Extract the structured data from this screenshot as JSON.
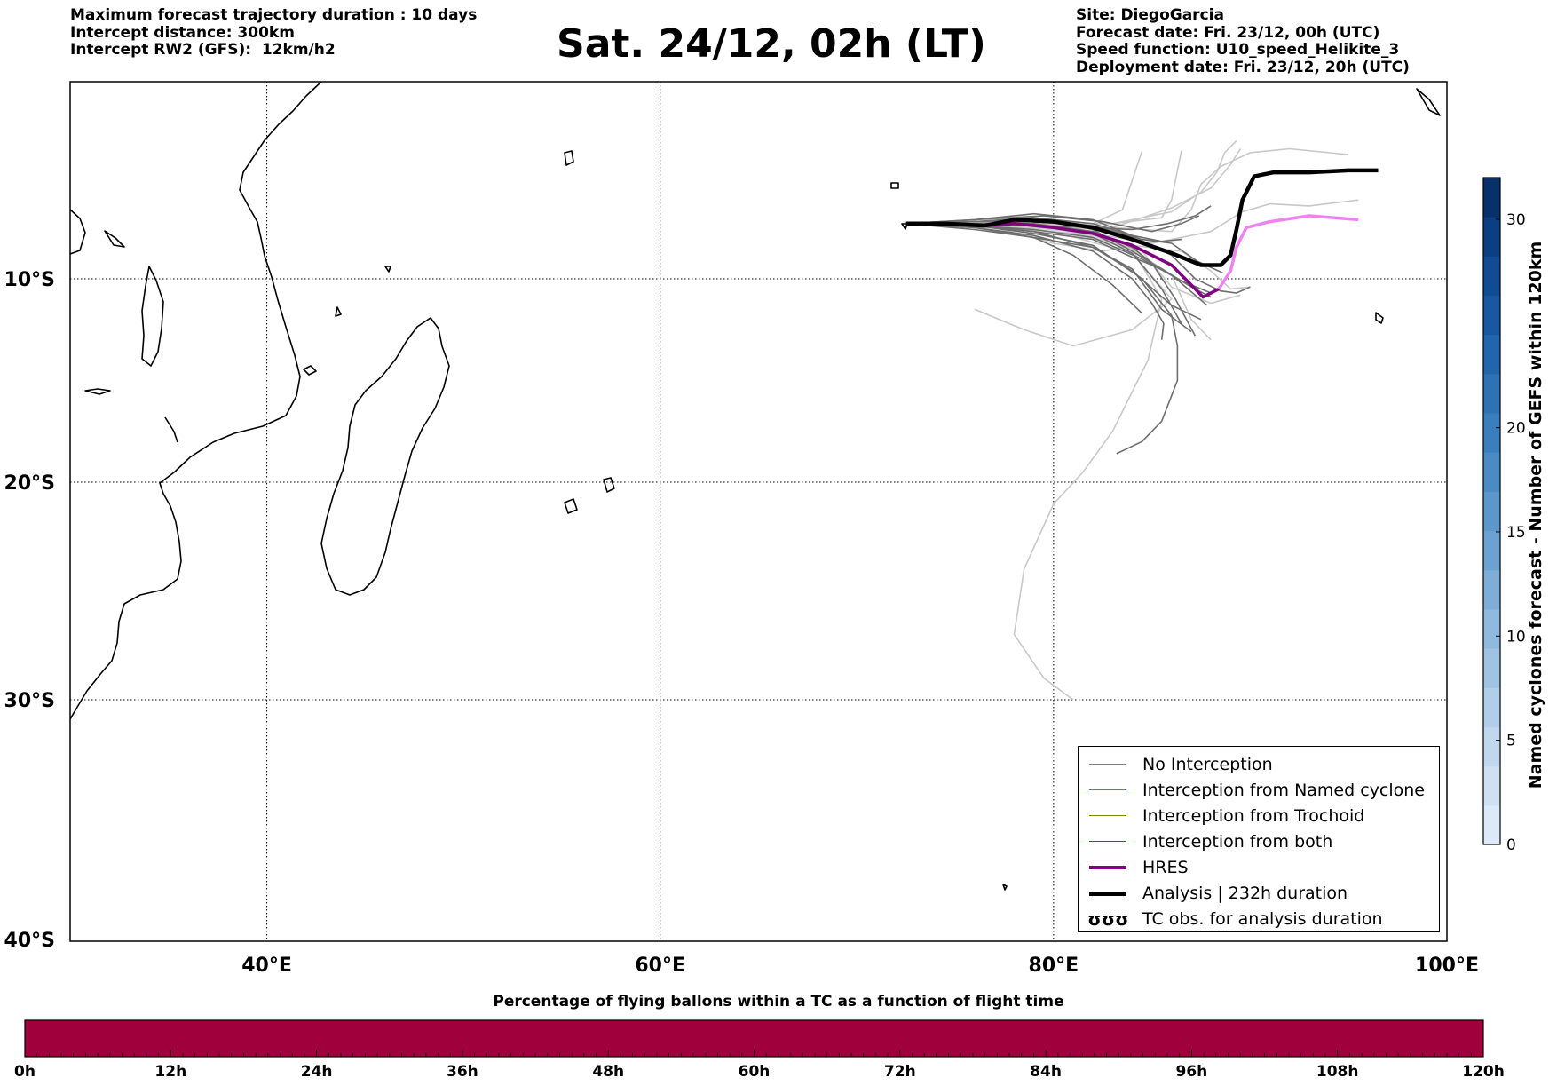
{
  "header_left": [
    "Maximum forecast trajectory duration : 10 days",
    "Intercept distance: 300km",
    "Intercept RW2 (GFS):  12km/h2"
  ],
  "header_right": [
    "Site: DiegoGarcia",
    "Forecast date: Fri. 23/12, 00h (UTC)",
    "Speed function: U10_speed_Helikite_3",
    "Deployment date: Fri. 23/12, 20h (UTC)"
  ],
  "title": "Sat. 24/12, 02h (LT)",
  "map": {
    "lon_range": [
      30,
      100
    ],
    "lat_range": [
      -40,
      0
    ],
    "lon_ticks": [
      {
        "v": 40,
        "label": "40°E"
      },
      {
        "v": 60,
        "label": "60°E"
      },
      {
        "v": 80,
        "label": "80°E"
      },
      {
        "v": 100,
        "label": "100°E"
      }
    ],
    "lat_ticks": [
      {
        "v": -10,
        "label": "10°S"
      },
      {
        "v": -20,
        "label": "20°S"
      },
      {
        "v": -30,
        "label": "30°S"
      },
      {
        "v": -40,
        "label": "40°S"
      }
    ]
  },
  "legend": {
    "items": [
      {
        "label": "No Interception",
        "color": "#7f7f7f",
        "width": 1.5,
        "kind": "line"
      },
      {
        "label": "Interception from Named cyclone",
        "color": "#ff4500",
        "width": 1.5,
        "kind": "line"
      },
      {
        "label": "Interception from Trochoid",
        "color": "#808000",
        "width": 1.5,
        "kind": "line"
      },
      {
        "label": "Interception from both",
        "color": "#008000",
        "width": 1.5,
        "kind": "line"
      },
      {
        "label": "HRES",
        "color": "#800080",
        "width": 4,
        "kind": "line"
      },
      {
        "label": "Analysis | 232h duration",
        "color": "#000000",
        "width": 5,
        "kind": "line"
      },
      {
        "label": "TC obs. for analysis duration",
        "color": "#000000",
        "kind": "symbol",
        "symbol": "ʊʊʊ"
      }
    ]
  },
  "colorbar_right": {
    "label": "Named cyclones forecast - Number of GEFS within 120km",
    "ticks": [
      0,
      5,
      10,
      15,
      20,
      30
    ],
    "range": [
      0,
      32
    ],
    "colors": [
      "#dce9f6",
      "#cfe0f2",
      "#c0d7ee",
      "#b0cde9",
      "#a0c3e3",
      "#8fb9de",
      "#7eaed8",
      "#6ca2d1",
      "#5b97cb",
      "#4a8bc4",
      "#3a7fbd",
      "#2c72b5",
      "#2165ac",
      "#1858a1",
      "#104c94",
      "#0b3f84",
      "#08306b"
    ]
  },
  "bottom_bar": {
    "title": "Percentage of flying ballons within a TC as a function of flight time",
    "color": "#a0003c",
    "ticks": [
      "0h",
      "12h",
      "24h",
      "36h",
      "48h",
      "60h",
      "72h",
      "84h",
      "96h",
      "108h",
      "120h"
    ]
  },
  "chart_data": {
    "type": "line",
    "title": "Sat. 24/12, 02h (LT)",
    "xlabel": "",
    "ylabel": "",
    "xlim": [
      30,
      100
    ],
    "ylim": [
      -40,
      0
    ],
    "grid": true,
    "legend_position": "bottom-right",
    "analysis": {
      "name": "Analysis | 232h duration",
      "points": [
        [
          72.5,
          -7.2
        ],
        [
          74.5,
          -7.2
        ],
        [
          76.5,
          -7.3
        ],
        [
          78,
          -7
        ],
        [
          80,
          -7.1
        ],
        [
          82,
          -7.4
        ],
        [
          84,
          -8
        ],
        [
          86,
          -8.7
        ],
        [
          87.5,
          -9.3
        ],
        [
          88.5,
          -9.3
        ],
        [
          89,
          -8.8
        ],
        [
          89.3,
          -7.5
        ],
        [
          89.6,
          -6
        ],
        [
          90.2,
          -4.8
        ],
        [
          91.2,
          -4.6
        ],
        [
          93,
          -4.6
        ],
        [
          95,
          -4.5
        ],
        [
          96.5,
          -4.5
        ]
      ]
    },
    "hres": {
      "name": "HRES",
      "points": [
        [
          72.5,
          -7.2
        ],
        [
          74.5,
          -7.2
        ],
        [
          76.5,
          -7.3
        ],
        [
          78,
          -7.2
        ],
        [
          80,
          -7.4
        ],
        [
          82,
          -7.7
        ],
        [
          84,
          -8.3
        ],
        [
          86,
          -9.3
        ],
        [
          87,
          -10.3
        ],
        [
          87.6,
          -10.9
        ],
        [
          88.4,
          -10.5
        ],
        [
          89,
          -9.6
        ],
        [
          89.3,
          -8.4
        ],
        [
          89.8,
          -7.4
        ],
        [
          91,
          -7.1
        ],
        [
          93,
          -6.8
        ],
        [
          95.5,
          -7
        ]
      ]
    },
    "ensemble_light": [
      [
        [
          72.5,
          -7.2
        ],
        [
          76,
          -7.3
        ],
        [
          80,
          -7.6
        ],
        [
          84,
          -8.7
        ],
        [
          86,
          -11
        ],
        [
          84,
          -12.5
        ],
        [
          81,
          -13.3
        ],
        [
          78.5,
          -12.5
        ],
        [
          76,
          -11.5
        ]
      ],
      [
        [
          72.5,
          -7.2
        ],
        [
          76,
          -7.2
        ],
        [
          80,
          -7.4
        ],
        [
          84,
          -8.5
        ],
        [
          85.5,
          -11
        ],
        [
          84.8,
          -14
        ],
        [
          83,
          -17.5
        ],
        [
          81.5,
          -19.5
        ],
        [
          80,
          -21
        ],
        [
          78.5,
          -24
        ],
        [
          78,
          -27
        ],
        [
          79.5,
          -29
        ],
        [
          81,
          -30
        ]
      ],
      [
        [
          72.5,
          -7.2
        ],
        [
          77,
          -7.2
        ],
        [
          81,
          -7.6
        ],
        [
          84,
          -8.5
        ],
        [
          86,
          -9.8
        ],
        [
          87,
          -12
        ],
        [
          88,
          -13
        ]
      ],
      [
        [
          72.5,
          -7.2
        ],
        [
          78,
          -7.1
        ],
        [
          82,
          -7.2
        ],
        [
          83.5,
          -6.5
        ],
        [
          84,
          -5
        ],
        [
          84.5,
          -3.5
        ]
      ],
      [
        [
          72.5,
          -7.2
        ],
        [
          78,
          -7.2
        ],
        [
          83,
          -7.4
        ],
        [
          86,
          -7.6
        ],
        [
          87,
          -6.5
        ],
        [
          87.5,
          -5.2
        ],
        [
          88.5,
          -4.3
        ],
        [
          90,
          -3.6
        ],
        [
          92,
          -3.4
        ],
        [
          95,
          -3.7
        ]
      ],
      [
        [
          72.5,
          -7.2
        ],
        [
          78,
          -7.2
        ],
        [
          83,
          -7.2
        ],
        [
          85.5,
          -6.9
        ],
        [
          86,
          -6
        ],
        [
          86.3,
          -4.5
        ],
        [
          86.5,
          -3.5
        ]
      ],
      [
        [
          72.5,
          -7.2
        ],
        [
          78,
          -7.3
        ],
        [
          82,
          -7.7
        ],
        [
          85,
          -8.2
        ],
        [
          88,
          -7.6
        ],
        [
          89.6,
          -6.6
        ],
        [
          91,
          -6.2
        ],
        [
          93,
          -6.3
        ],
        [
          95.5,
          -6
        ]
      ],
      [
        [
          72.5,
          -7.2
        ],
        [
          77,
          -7.4
        ],
        [
          80,
          -8.2
        ],
        [
          82.5,
          -8.6
        ],
        [
          84,
          -8.3
        ],
        [
          86.5,
          -8.6
        ],
        [
          88,
          -9.6
        ],
        [
          89,
          -10.5
        ],
        [
          90,
          -10.4
        ]
      ],
      [
        [
          72.5,
          -7.2
        ],
        [
          77,
          -7.3
        ],
        [
          80,
          -7.5
        ],
        [
          83,
          -7.4
        ],
        [
          86,
          -6.4
        ],
        [
          88,
          -5.4
        ],
        [
          89,
          -4.2
        ],
        [
          89.5,
          -3.4
        ]
      ],
      [
        [
          72.5,
          -7.2
        ],
        [
          78,
          -7.2
        ],
        [
          83,
          -7.2
        ],
        [
          86,
          -6.6
        ],
        [
          87.5,
          -5.6
        ],
        [
          88.3,
          -4.6
        ],
        [
          88.7,
          -3.6
        ],
        [
          89.3,
          -3
        ]
      ],
      [
        [
          72.5,
          -7.2
        ],
        [
          78,
          -7.4
        ],
        [
          82,
          -7.8
        ],
        [
          84.5,
          -8.6
        ],
        [
          86,
          -10.4
        ],
        [
          88,
          -11.2
        ],
        [
          89.5,
          -10.8
        ]
      ]
    ],
    "ensemble_dark": [
      [
        [
          72.5,
          -7.2
        ],
        [
          76,
          -7.4
        ],
        [
          79,
          -7.9
        ],
        [
          82,
          -8.4
        ],
        [
          84,
          -9.5
        ],
        [
          85.5,
          -11.5
        ],
        [
          87,
          -12.6
        ]
      ],
      [
        [
          72.5,
          -7.2
        ],
        [
          76,
          -7.3
        ],
        [
          79,
          -7.6
        ],
        [
          82,
          -8.4
        ],
        [
          84,
          -9.6
        ],
        [
          86,
          -11.3
        ],
        [
          87.5,
          -12
        ]
      ],
      [
        [
          72.5,
          -7.2
        ],
        [
          76,
          -7.3
        ],
        [
          79,
          -7.7
        ],
        [
          82,
          -8.3
        ],
        [
          84.5,
          -10
        ],
        [
          86,
          -11.8
        ],
        [
          86.3,
          -13.3
        ],
        [
          86.3,
          -15
        ],
        [
          85.5,
          -17
        ],
        [
          84.5,
          -18
        ],
        [
          83.2,
          -18.6
        ]
      ],
      [
        [
          72.5,
          -7.2
        ],
        [
          76,
          -7
        ],
        [
          79,
          -6.7
        ],
        [
          82,
          -7
        ],
        [
          84,
          -7.8
        ],
        [
          86,
          -8.8
        ],
        [
          87.2,
          -10
        ],
        [
          88.5,
          -10.6
        ],
        [
          89.3,
          -10.7
        ],
        [
          90,
          -10.4
        ]
      ],
      [
        [
          72.5,
          -7.2
        ],
        [
          76,
          -7.2
        ],
        [
          79,
          -7.1
        ],
        [
          82,
          -7.3
        ],
        [
          84.5,
          -8
        ],
        [
          86,
          -8.2
        ],
        [
          87.3,
          -9.1
        ],
        [
          88.6,
          -9.7
        ]
      ],
      [
        [
          72.5,
          -7.2
        ],
        [
          76,
          -7.2
        ],
        [
          79,
          -7.3
        ],
        [
          82,
          -7.7
        ],
        [
          84,
          -8.7
        ],
        [
          85.5,
          -10.5
        ],
        [
          86.5,
          -12.2
        ]
      ],
      [
        [
          72.5,
          -7.2
        ],
        [
          76,
          -7
        ],
        [
          79.5,
          -6.8
        ],
        [
          82.5,
          -7.1
        ],
        [
          85,
          -7.6
        ],
        [
          86.5,
          -7.2
        ],
        [
          87.4,
          -6.8
        ]
      ],
      [
        [
          72.5,
          -7.2
        ],
        [
          76,
          -7.3
        ],
        [
          79,
          -7.6
        ],
        [
          82,
          -8
        ],
        [
          84,
          -8.9
        ],
        [
          85.5,
          -9.5
        ],
        [
          87,
          -10.4
        ],
        [
          88,
          -10.9
        ]
      ],
      [
        [
          72.5,
          -7.2
        ],
        [
          76,
          -7.4
        ],
        [
          79,
          -7.8
        ],
        [
          82,
          -8.6
        ],
        [
          84,
          -10
        ],
        [
          85,
          -11.2
        ],
        [
          85.6,
          -12.2
        ],
        [
          85.5,
          -13
        ]
      ],
      [
        [
          72.5,
          -7.2
        ],
        [
          76,
          -7.1
        ],
        [
          79,
          -6.9
        ],
        [
          82,
          -7.2
        ],
        [
          84,
          -7.8
        ],
        [
          85.5,
          -8.1
        ],
        [
          86.5,
          -8
        ]
      ],
      [
        [
          72.5,
          -7.2
        ],
        [
          76,
          -7.3
        ],
        [
          79,
          -7.5
        ],
        [
          82,
          -7.9
        ],
        [
          84.5,
          -9
        ],
        [
          86.5,
          -10.1
        ],
        [
          88,
          -10.7
        ]
      ],
      [
        [
          72.5,
          -7.2
        ],
        [
          76,
          -7.2
        ],
        [
          79,
          -7.2
        ],
        [
          82,
          -7.6
        ],
        [
          84,
          -8.4
        ],
        [
          85,
          -9.2
        ],
        [
          86.2,
          -11
        ],
        [
          87.2,
          -12.8
        ]
      ],
      [
        [
          72.5,
          -7.2
        ],
        [
          76,
          -7.1
        ],
        [
          79.5,
          -7
        ],
        [
          82,
          -7.5
        ],
        [
          84,
          -8.6
        ],
        [
          86,
          -9.8
        ],
        [
          87.8,
          -11.3
        ]
      ],
      [
        [
          72.5,
          -7.2
        ],
        [
          76,
          -7.5
        ],
        [
          79,
          -7.9
        ],
        [
          81,
          -8.8
        ],
        [
          83,
          -10.3
        ],
        [
          84.5,
          -11.7
        ]
      ],
      [
        [
          72.5,
          -7.2
        ],
        [
          76,
          -7.2
        ],
        [
          79,
          -7.3
        ],
        [
          82,
          -7.4
        ],
        [
          84,
          -7.5
        ],
        [
          85.8,
          -7.2
        ],
        [
          87.2,
          -6.8
        ],
        [
          88,
          -6.3
        ]
      ]
    ]
  }
}
